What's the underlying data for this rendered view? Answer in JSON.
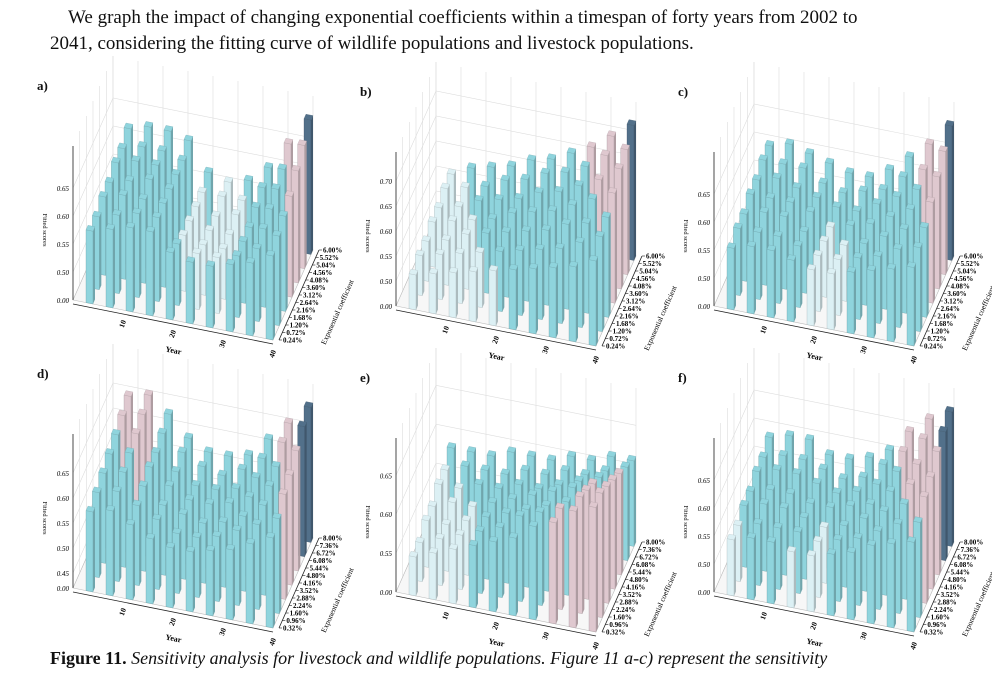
{
  "text": {
    "line1": "We graph the impact of changing exponential coefficients within a timespan of forty years from 2002 to",
    "line2": "2041, considering the fitting curve of wildlife populations and livestock populations."
  },
  "caption": {
    "label": "Figure 11.",
    "text": "Sensitivity analysis for livestock and wildlife populations. Figure 11 a-c) represent the sensitivity"
  },
  "colors": {
    "low": "#dcf0f4",
    "mid": "#8fd4dd",
    "high": "#dfc8cf",
    "top": "#52708a"
  },
  "chart_data": [
    {
      "panel": "a)",
      "type": "bar3d",
      "xlabel": "Year",
      "ylabel": "Exponential coefficient",
      "zlabel": "Fitted scores",
      "xticks": [
        "10",
        "20",
        "30",
        "40"
      ],
      "yticks": [
        "0.24%",
        "0.72%",
        "1.20%",
        "1.68%",
        "2.16%",
        "2.64%",
        "3.12%",
        "3.60%",
        "4.08%",
        "4.56%",
        "5.04%",
        "5.52%",
        "6.00%"
      ],
      "zticks": [
        "0.00",
        "0.50",
        "0.55",
        "0.60",
        "0.65"
      ],
      "zlim": [
        0.45,
        0.7
      ],
      "years": [
        4,
        8,
        12,
        16,
        20,
        24,
        28,
        32,
        36,
        40
      ],
      "coefficients": [
        "0.24%",
        "1.20%",
        "2.16%",
        "3.12%",
        "4.08%",
        "5.04%",
        "6.00%"
      ],
      "values": [
        [
          0.58,
          0.59,
          0.6,
          0.6,
          0.57,
          0.56,
          0.56,
          0.57,
          0.58,
          0.6
        ],
        [
          0.58,
          0.59,
          0.6,
          0.6,
          0.56,
          0.55,
          0.55,
          0.56,
          0.58,
          0.61
        ],
        [
          0.59,
          0.6,
          0.6,
          0.6,
          0.55,
          0.54,
          0.54,
          0.56,
          0.59,
          0.62
        ],
        [
          0.59,
          0.6,
          0.61,
          0.6,
          0.55,
          0.54,
          0.54,
          0.56,
          0.6,
          0.63
        ],
        [
          0.6,
          0.61,
          0.61,
          0.6,
          0.55,
          0.54,
          0.55,
          0.57,
          0.61,
          0.65
        ],
        [
          0.6,
          0.61,
          0.61,
          0.6,
          0.55,
          0.55,
          0.55,
          0.58,
          0.62,
          0.67
        ],
        [
          0.61,
          0.62,
          0.62,
          0.61,
          0.56,
          0.55,
          0.56,
          0.59,
          0.64,
          0.69
        ]
      ]
    },
    {
      "panel": "b)",
      "type": "bar3d",
      "xlabel": "Year",
      "ylabel": "Exponential coefficient",
      "zlabel": "Fitted scores",
      "xticks": [
        "10",
        "20",
        "30",
        "40"
      ],
      "yticks": [
        "0.24%",
        "0.72%",
        "1.20%",
        "1.68%",
        "2.16%",
        "2.64%",
        "3.12%",
        "3.60%",
        "4.08%",
        "4.56%",
        "5.04%",
        "5.52%",
        "6.00%"
      ],
      "zticks": [
        "0.00",
        "0.50",
        "0.55",
        "0.60",
        "0.65",
        "0.70"
      ],
      "zlim": [
        0.45,
        0.73
      ],
      "years": [
        4,
        8,
        12,
        16,
        20,
        24,
        28,
        32,
        36,
        40
      ],
      "coefficients": [
        "0.24%",
        "1.20%",
        "2.16%",
        "3.12%",
        "4.08%",
        "5.04%",
        "6.00%"
      ],
      "values": [
        [
          0.52,
          0.53,
          0.54,
          0.55,
          0.56,
          0.57,
          0.58,
          0.59,
          0.6,
          0.62
        ],
        [
          0.53,
          0.54,
          0.55,
          0.56,
          0.57,
          0.58,
          0.59,
          0.6,
          0.62,
          0.64
        ],
        [
          0.53,
          0.54,
          0.56,
          0.57,
          0.58,
          0.59,
          0.6,
          0.62,
          0.63,
          0.65
        ],
        [
          0.54,
          0.55,
          0.56,
          0.57,
          0.59,
          0.6,
          0.61,
          0.63,
          0.65,
          0.67
        ],
        [
          0.54,
          0.55,
          0.57,
          0.58,
          0.59,
          0.61,
          0.62,
          0.64,
          0.66,
          0.69
        ],
        [
          0.55,
          0.56,
          0.57,
          0.59,
          0.6,
          0.62,
          0.63,
          0.65,
          0.68,
          0.7
        ],
        [
          0.55,
          0.57,
          0.58,
          0.59,
          0.61,
          0.62,
          0.64,
          0.66,
          0.69,
          0.72
        ]
      ]
    },
    {
      "panel": "c)",
      "type": "bar3d",
      "xlabel": "Year",
      "ylabel": "Exponential coefficient",
      "zlabel": "Fitted scores",
      "xticks": [
        "10",
        "20",
        "30",
        "40"
      ],
      "yticks": [
        "0.24%",
        "0.72%",
        "1.20%",
        "1.68%",
        "2.16%",
        "2.64%",
        "3.12%",
        "3.60%",
        "4.08%",
        "4.56%",
        "5.04%",
        "5.52%",
        "6.00%"
      ],
      "zticks": [
        "0.00",
        "0.50",
        "0.55",
        "0.60",
        "0.65"
      ],
      "zlim": [
        0.45,
        0.7
      ],
      "years": [
        4,
        8,
        12,
        16,
        20,
        24,
        28,
        32,
        36,
        40
      ],
      "coefficients": [
        "0.24%",
        "1.20%",
        "2.16%",
        "3.12%",
        "4.08%",
        "5.04%",
        "6.00%"
      ],
      "values": [
        [
          0.56,
          0.57,
          0.57,
          0.56,
          0.55,
          0.55,
          0.56,
          0.57,
          0.58,
          0.59
        ],
        [
          0.57,
          0.57,
          0.57,
          0.56,
          0.55,
          0.55,
          0.56,
          0.57,
          0.59,
          0.6
        ],
        [
          0.57,
          0.58,
          0.58,
          0.56,
          0.55,
          0.55,
          0.56,
          0.58,
          0.6,
          0.61
        ],
        [
          0.58,
          0.58,
          0.58,
          0.57,
          0.55,
          0.56,
          0.57,
          0.59,
          0.61,
          0.63
        ],
        [
          0.58,
          0.59,
          0.58,
          0.57,
          0.56,
          0.56,
          0.58,
          0.6,
          0.62,
          0.65
        ],
        [
          0.59,
          0.59,
          0.59,
          0.57,
          0.56,
          0.57,
          0.58,
          0.61,
          0.63,
          0.67
        ],
        [
          0.59,
          0.6,
          0.59,
          0.58,
          0.57,
          0.57,
          0.59,
          0.62,
          0.65,
          0.69
        ]
      ]
    },
    {
      "panel": "d)",
      "type": "bar3d",
      "xlabel": "Year",
      "ylabel": "Exponential coefficient",
      "zlabel": "Fitted scores",
      "xticks": [
        "10",
        "20",
        "30",
        "40"
      ],
      "yticks": [
        "0.32%",
        "0.96%",
        "1.60%",
        "2.24%",
        "2.88%",
        "3.52%",
        "4.16%",
        "4.80%",
        "5.44%",
        "6.08%",
        "6.72%",
        "7.36%",
        "8.00%"
      ],
      "zticks": [
        "0.00",
        "0.45",
        "0.50",
        "0.55",
        "0.60",
        "0.65"
      ],
      "zlim": [
        0.42,
        0.7
      ],
      "years": [
        4,
        8,
        12,
        16,
        20,
        24,
        28,
        32,
        36,
        40
      ],
      "coefficients": [
        "0.32%",
        "1.60%",
        "2.88%",
        "4.16%",
        "5.44%",
        "6.72%",
        "8.00%"
      ],
      "values": [
        [
          0.58,
          0.59,
          0.57,
          0.55,
          0.54,
          0.54,
          0.55,
          0.56,
          0.58,
          0.6
        ],
        [
          0.59,
          0.6,
          0.58,
          0.56,
          0.54,
          0.54,
          0.55,
          0.57,
          0.59,
          0.61
        ],
        [
          0.6,
          0.61,
          0.59,
          0.56,
          0.55,
          0.54,
          0.55,
          0.57,
          0.6,
          0.63
        ],
        [
          0.61,
          0.62,
          0.6,
          0.57,
          0.55,
          0.55,
          0.56,
          0.58,
          0.61,
          0.64
        ],
        [
          0.62,
          0.63,
          0.6,
          0.57,
          0.55,
          0.55,
          0.56,
          0.59,
          0.62,
          0.66
        ],
        [
          0.63,
          0.64,
          0.61,
          0.58,
          0.56,
          0.55,
          0.57,
          0.6,
          0.64,
          0.68
        ],
        [
          0.64,
          0.65,
          0.62,
          0.58,
          0.56,
          0.56,
          0.57,
          0.61,
          0.65,
          0.69
        ]
      ]
    },
    {
      "panel": "e)",
      "type": "bar3d",
      "xlabel": "Year",
      "ylabel": "Exponential coefficient",
      "zlabel": "Fitted scores",
      "xticks": [
        "10",
        "20",
        "30",
        "40"
      ],
      "yticks": [
        "0.32%",
        "0.96%",
        "1.60%",
        "2.24%",
        "2.88%",
        "3.52%",
        "4.16%",
        "4.80%",
        "5.44%",
        "6.08%",
        "6.72%",
        "7.36%",
        "8.00%"
      ],
      "zticks": [
        "0.00",
        "0.55",
        "0.60",
        "0.65"
      ],
      "zlim": [
        0.5,
        0.68
      ],
      "years": [
        4,
        8,
        12,
        16,
        20,
        24,
        28,
        32,
        36,
        40
      ],
      "coefficients": [
        "0.32%",
        "1.60%",
        "2.88%",
        "4.16%",
        "5.44%",
        "6.72%",
        "8.00%"
      ],
      "values": [
        [
          0.55,
          0.56,
          0.57,
          0.58,
          0.59,
          0.6,
          0.62,
          0.63,
          0.65,
          0.66
        ],
        [
          0.55,
          0.56,
          0.57,
          0.58,
          0.59,
          0.61,
          0.62,
          0.63,
          0.65,
          0.66
        ],
        [
          0.56,
          0.56,
          0.57,
          0.58,
          0.59,
          0.6,
          0.61,
          0.62,
          0.64,
          0.65
        ],
        [
          0.56,
          0.57,
          0.57,
          0.58,
          0.59,
          0.6,
          0.61,
          0.62,
          0.63,
          0.64
        ],
        [
          0.57,
          0.57,
          0.58,
          0.58,
          0.59,
          0.59,
          0.6,
          0.61,
          0.62,
          0.63
        ],
        [
          0.57,
          0.58,
          0.58,
          0.58,
          0.59,
          0.59,
          0.6,
          0.6,
          0.61,
          0.62
        ],
        [
          0.58,
          0.58,
          0.58,
          0.59,
          0.59,
          0.59,
          0.6,
          0.6,
          0.61,
          0.61
        ]
      ]
    },
    {
      "panel": "f)",
      "type": "bar3d",
      "xlabel": "Year",
      "ylabel": "Exponential coefficient",
      "zlabel": "Fitted scores",
      "xticks": [
        "10",
        "20",
        "30",
        "40"
      ],
      "yticks": [
        "0.32%",
        "0.96%",
        "1.60%",
        "2.24%",
        "2.88%",
        "3.52%",
        "4.16%",
        "4.80%",
        "5.44%",
        "6.08%",
        "6.72%",
        "7.36%",
        "8.00%"
      ],
      "zticks": [
        "0.00",
        "0.50",
        "0.55",
        "0.60",
        "0.65"
      ],
      "zlim": [
        0.45,
        0.7
      ],
      "years": [
        4,
        8,
        12,
        16,
        20,
        24,
        28,
        32,
        36,
        40
      ],
      "coefficients": [
        "0.32%",
        "1.60%",
        "2.88%",
        "4.16%",
        "5.44%",
        "6.72%",
        "8.00%"
      ],
      "values": [
        [
          0.55,
          0.56,
          0.56,
          0.55,
          0.55,
          0.56,
          0.57,
          0.59,
          0.6,
          0.61
        ],
        [
          0.55,
          0.56,
          0.56,
          0.56,
          0.55,
          0.56,
          0.57,
          0.59,
          0.61,
          0.62
        ],
        [
          0.56,
          0.57,
          0.57,
          0.56,
          0.55,
          0.56,
          0.58,
          0.6,
          0.62,
          0.64
        ],
        [
          0.56,
          0.57,
          0.57,
          0.56,
          0.56,
          0.57,
          0.58,
          0.61,
          0.63,
          0.65
        ],
        [
          0.57,
          0.58,
          0.58,
          0.57,
          0.56,
          0.57,
          0.59,
          0.62,
          0.64,
          0.67
        ],
        [
          0.57,
          0.58,
          0.58,
          0.57,
          0.56,
          0.57,
          0.6,
          0.63,
          0.66,
          0.68
        ],
        [
          0.58,
          0.59,
          0.59,
          0.57,
          0.57,
          0.58,
          0.6,
          0.64,
          0.67,
          0.69
        ]
      ]
    }
  ]
}
